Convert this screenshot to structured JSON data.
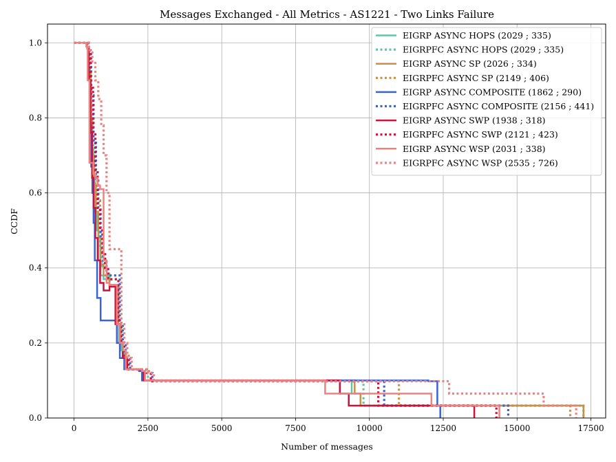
{
  "chart_data": {
    "type": "line",
    "step": true,
    "title": "Messages Exchanged - All Metrics - AS1221 - Two Links Failure",
    "xlabel": "Number of messages",
    "ylabel": "CCDF",
    "xlim": [
      -900,
      18000
    ],
    "ylim": [
      0,
      1.05
    ],
    "xticks": [
      0,
      2500,
      5000,
      7500,
      10000,
      12500,
      15000,
      17500
    ],
    "yticks": [
      0.0,
      0.2,
      0.4,
      0.6,
      0.8,
      1.0
    ],
    "xtick_labels": [
      "0",
      "2500",
      "5000",
      "7500",
      "10000",
      "12500",
      "15000",
      "17500"
    ],
    "ytick_labels": [
      "0.0",
      "0.2",
      "0.4",
      "0.6",
      "0.8",
      "1.0"
    ],
    "grid": true,
    "legend_position": "top-right",
    "series": [
      {
        "name": "EIGRP ASYNC HOPS (2029 ; 335)",
        "color": "#66c2a5",
        "dash": "solid",
        "x": [
          0,
          430,
          470,
          540,
          600,
          650,
          700,
          760,
          830,
          900,
          1000,
          1150,
          1200,
          1450,
          1520,
          1600,
          1700,
          2300,
          2370,
          9400,
          9700,
          17200,
          17250
        ],
        "y": [
          1.0,
          0.99,
          0.93,
          0.8,
          0.72,
          0.64,
          0.55,
          0.5,
          0.42,
          0.38,
          0.37,
          0.385,
          0.355,
          0.25,
          0.2,
          0.18,
          0.13,
          0.125,
          0.1,
          0.065,
          0.033,
          0.033,
          0.0
        ]
      },
      {
        "name": "EIGRPFC ASYNC HOPS (2029 ; 335)",
        "color": "#66c2a5",
        "dash": "dotted",
        "x": [
          0,
          450,
          520,
          580,
          650,
          720,
          800,
          880,
          950,
          1100,
          1200,
          1450,
          1550,
          1650,
          1800,
          2400,
          2500,
          9500,
          9800,
          17100,
          17250
        ],
        "y": [
          1.0,
          0.98,
          0.9,
          0.78,
          0.68,
          0.6,
          0.52,
          0.45,
          0.4,
          0.38,
          0.355,
          0.26,
          0.2,
          0.17,
          0.13,
          0.125,
          0.1,
          0.098,
          0.033,
          0.033,
          0.0
        ]
      },
      {
        "name": "EIGRP ASYNC SP (2026 ; 334)",
        "color": "#c8904a",
        "dash": "solid",
        "x": [
          0,
          420,
          480,
          560,
          620,
          680,
          740,
          820,
          900,
          1000,
          1100,
          1200,
          1500,
          1580,
          1650,
          1750,
          2300,
          2400,
          9500,
          9700,
          17150,
          17250
        ],
        "y": [
          1.0,
          0.99,
          0.92,
          0.8,
          0.7,
          0.62,
          0.55,
          0.48,
          0.41,
          0.38,
          0.37,
          0.355,
          0.25,
          0.2,
          0.16,
          0.13,
          0.125,
          0.1,
          0.065,
          0.033,
          0.033,
          0.0
        ]
      },
      {
        "name": "EIGRPFC ASYNC SP (2149 ; 406)",
        "color": "#c8904a",
        "dash": "dotted",
        "x": [
          0,
          480,
          560,
          640,
          720,
          800,
          880,
          960,
          1050,
          1150,
          1500,
          1600,
          1700,
          1850,
          2450,
          2600,
          10800,
          11000,
          16600,
          16800
        ],
        "y": [
          1.0,
          0.97,
          0.88,
          0.76,
          0.66,
          0.58,
          0.5,
          0.44,
          0.4,
          0.37,
          0.27,
          0.2,
          0.17,
          0.13,
          0.125,
          0.098,
          0.098,
          0.033,
          0.033,
          0.0
        ]
      },
      {
        "name": "EIGRP ASYNC COMPOSITE (1862 ; 290)",
        "color": "#3a62d4",
        "dash": "solid",
        "x": [
          0,
          420,
          480,
          540,
          580,
          620,
          660,
          700,
          780,
          900,
          1300,
          1450,
          1550,
          1600,
          1700,
          2200,
          2300,
          12000,
          12300,
          12400
        ],
        "y": [
          1.0,
          0.99,
          0.9,
          0.78,
          0.67,
          0.6,
          0.52,
          0.42,
          0.32,
          0.26,
          0.26,
          0.2,
          0.16,
          0.16,
          0.13,
          0.125,
          0.1,
          0.098,
          0.033,
          0.0
        ]
      },
      {
        "name": "EIGRPFC ASYNC COMPOSITE (2156 ; 441)",
        "color": "#3a62d4",
        "dash": "dotted",
        "x": [
          0,
          500,
          580,
          660,
          740,
          820,
          900,
          980,
          1100,
          1550,
          1650,
          1750,
          1900,
          2500,
          2650,
          10300,
          10500,
          14600,
          14700
        ],
        "y": [
          1.0,
          0.97,
          0.86,
          0.74,
          0.64,
          0.56,
          0.48,
          0.42,
          0.38,
          0.25,
          0.2,
          0.16,
          0.13,
          0.12,
          0.098,
          0.098,
          0.033,
          0.033,
          0.0
        ]
      },
      {
        "name": "EIGRP ASYNC SWP (1938 ; 318)",
        "color": "#c8143c",
        "dash": "solid",
        "x": [
          0,
          430,
          500,
          560,
          610,
          660,
          720,
          800,
          880,
          1000,
          1200,
          1400,
          1550,
          1650,
          1800,
          2300,
          2350,
          9000,
          9300,
          13500,
          13550
        ],
        "y": [
          1.0,
          0.99,
          0.9,
          0.76,
          0.64,
          0.56,
          0.48,
          0.42,
          0.36,
          0.34,
          0.35,
          0.25,
          0.2,
          0.16,
          0.13,
          0.125,
          0.1,
          0.065,
          0.033,
          0.033,
          0.0
        ]
      },
      {
        "name": "EIGRPFC ASYNC SWP (2121 ; 423)",
        "color": "#c8143c",
        "dash": "dotted",
        "x": [
          0,
          480,
          560,
          640,
          720,
          800,
          880,
          960,
          1050,
          1150,
          1500,
          1600,
          1700,
          1850,
          2450,
          2600,
          10000,
          10300,
          14200,
          14300
        ],
        "y": [
          1.0,
          0.98,
          0.88,
          0.76,
          0.66,
          0.56,
          0.5,
          0.44,
          0.4,
          0.37,
          0.26,
          0.2,
          0.16,
          0.13,
          0.12,
          0.098,
          0.098,
          0.033,
          0.033,
          0.0
        ]
      },
      {
        "name": "EIGRP ASYNC WSP (2031 ; 338)",
        "color": "#f08080",
        "dash": "solid",
        "x": [
          0,
          420,
          460,
          520,
          560,
          650,
          720,
          800,
          880,
          1000,
          1100,
          1200,
          1450,
          1550,
          1650,
          1750,
          2300,
          2400,
          8500,
          12100,
          14350,
          14400
        ],
        "y": [
          1.0,
          0.99,
          0.9,
          0.68,
          0.68,
          0.65,
          0.64,
          0.62,
          0.61,
          0.42,
          0.36,
          0.355,
          0.25,
          0.2,
          0.18,
          0.13,
          0.125,
          0.1,
          0.065,
          0.033,
          0.033,
          0.0
        ]
      },
      {
        "name": "EIGRPFC ASYNC WSP (2535 ; 726)",
        "color": "#f08080",
        "dash": "dotted",
        "x": [
          0,
          500,
          620,
          720,
          820,
          920,
          1000,
          1100,
          1200,
          1600,
          1700,
          1800,
          1950,
          2500,
          2700,
          12600,
          12700,
          15800,
          15900,
          16900,
          17000
        ],
        "y": [
          1.0,
          0.98,
          0.95,
          0.9,
          0.85,
          0.78,
          0.7,
          0.6,
          0.45,
          0.25,
          0.2,
          0.16,
          0.13,
          0.12,
          0.098,
          0.098,
          0.065,
          0.065,
          0.033,
          0.033,
          0.0
        ]
      }
    ]
  }
}
